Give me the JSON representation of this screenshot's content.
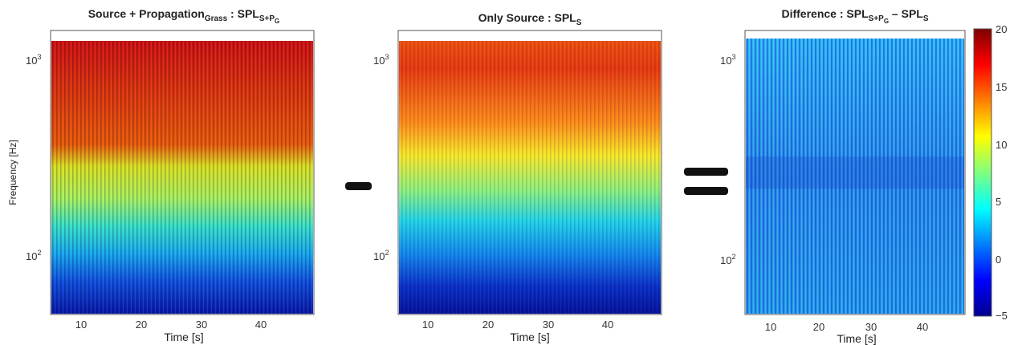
{
  "panels": [
    {
      "title": {
        "main": "Source + Propagation",
        "sub": "Grass",
        "rest": " : SPL",
        "sub2": "S+P",
        "sub3": "G"
      },
      "xlabel": "Time [s]",
      "ylabel": "Frequency [Hz]"
    },
    {
      "title": {
        "main": "Only Source : SPL",
        "sub": "S"
      },
      "xlabel": "Time [s]"
    },
    {
      "title": {
        "main": "Difference : SPL",
        "sub": "S+P",
        "sub2": "G",
        "mid": " – SPL",
        "sub3": "S"
      },
      "xlabel": "Time [s]"
    }
  ],
  "operators": {
    "minus": "–",
    "equals": "="
  },
  "chart_data": [
    {
      "type": "heatmap",
      "title": "Source + Propagation_Grass : SPL_{S+P_G}",
      "xlabel": "Time [s]",
      "ylabel": "Frequency [Hz]",
      "x_ticks": [
        10,
        20,
        30,
        40
      ],
      "y_ticks": [
        "10^2",
        "10^3"
      ],
      "xlim": [
        5,
        49
      ],
      "ylim": [
        50,
        1300
      ],
      "y_scale": "log",
      "colormap": "jet",
      "clim": [
        -5,
        20
      ],
      "description_levels": {
        "high_freq": 17,
        "mid_freq": 10,
        "low_freq": 0
      }
    },
    {
      "type": "heatmap",
      "title": "Only Source : SPL_S",
      "xlabel": "Time [s]",
      "x_ticks": [
        10,
        20,
        30,
        40
      ],
      "y_ticks": [
        "10^2",
        "10^3"
      ],
      "xlim": [
        5,
        49
      ],
      "ylim": [
        50,
        1300
      ],
      "y_scale": "log",
      "colormap": "jet",
      "clim": [
        -5,
        20
      ],
      "description_levels": {
        "high_freq": 16,
        "mid_freq": 9,
        "low_freq": -3
      }
    },
    {
      "type": "heatmap",
      "title": "Difference : SPL_{S+P_G} – SPL_S",
      "xlabel": "Time [s]",
      "x_ticks": [
        10,
        20,
        30,
        40
      ],
      "y_ticks": [
        "10^2",
        "10^3"
      ],
      "xlim": [
        5,
        49
      ],
      "ylim": [
        50,
        1300
      ],
      "y_scale": "log",
      "colormap": "jet",
      "clim": [
        -5,
        20
      ],
      "colorbar_ticks": [
        -5,
        0,
        5,
        10,
        15,
        20
      ],
      "description_levels": {
        "typical": 2
      }
    }
  ]
}
